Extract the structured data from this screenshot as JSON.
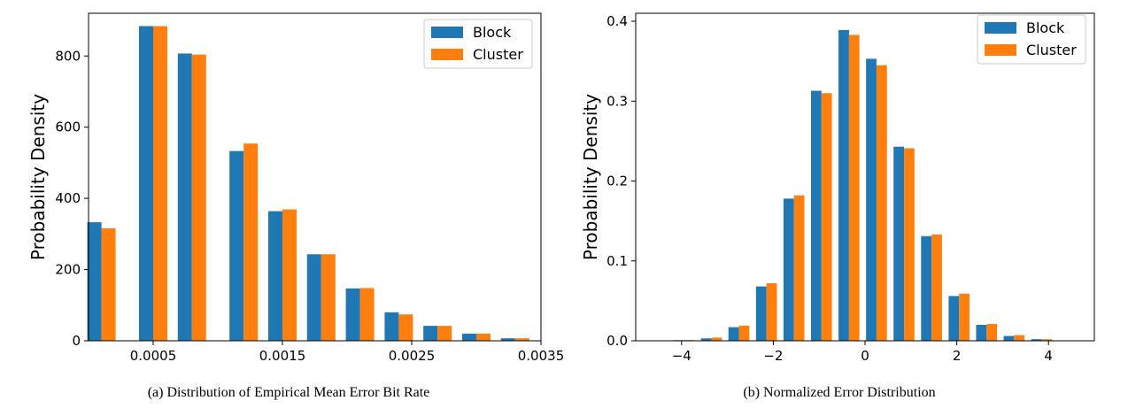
{
  "chart_data": [
    {
      "type": "bar",
      "caption": "(a) Distribution of Empirical Mean Error Bit Rate",
      "ylabel": "Probability Density",
      "xlabel": "",
      "xlim": [
        0.0,
        0.0035
      ],
      "ylim": [
        0,
        920
      ],
      "xticks": [
        0.0005,
        0.0015,
        0.0025,
        0.0035
      ],
      "xtick_labels": [
        "0.0005",
        "0.0015",
        "0.0025",
        "0.0035"
      ],
      "yticks": [
        0,
        200,
        400,
        600,
        800
      ],
      "ytick_labels": [
        "0",
        "200",
        "400",
        "600",
        "800"
      ],
      "legend": "top-right",
      "categories": [
        0.0001,
        0.0005,
        0.0008,
        0.0012,
        0.0015,
        0.0018,
        0.0021,
        0.0024,
        0.0027,
        0.003,
        0.0033
      ],
      "series": [
        {
          "name": "Block",
          "color": "#1f77b4",
          "values": [
            333,
            884,
            807,
            533,
            364,
            243,
            147,
            80,
            42,
            20,
            7
          ]
        },
        {
          "name": "Cluster",
          "color": "#ff7f0e",
          "values": [
            316,
            884,
            804,
            554,
            369,
            243,
            148,
            74,
            42,
            20,
            7
          ]
        }
      ]
    },
    {
      "type": "bar",
      "caption": "(b) Normalized Error Distribution",
      "ylabel": "Probability Density",
      "xlabel": "",
      "xlim": [
        -5.0,
        5.0
      ],
      "ylim": [
        0,
        0.41
      ],
      "xticks": [
        -4,
        -2,
        0,
        2,
        4
      ],
      "xtick_labels": [
        "−4",
        "−2",
        "0",
        "2",
        "4"
      ],
      "yticks": [
        0.0,
        0.1,
        0.2,
        0.3,
        0.4
      ],
      "ytick_labels": [
        "0.0",
        "0.1",
        "0.2",
        "0.3",
        "0.4"
      ],
      "legend": "top-right",
      "categories": [
        -4.55,
        -3.95,
        -3.35,
        -2.75,
        -2.15,
        -1.55,
        -0.95,
        -0.35,
        0.25,
        0.85,
        1.45,
        2.05,
        2.65,
        3.25,
        3.85,
        4.45
      ],
      "series": [
        {
          "name": "Block",
          "color": "#1f77b4",
          "values": [
            0.0005,
            0.0008,
            0.003,
            0.017,
            0.068,
            0.178,
            0.313,
            0.389,
            0.353,
            0.243,
            0.131,
            0.056,
            0.02,
            0.006,
            0.002,
            0.0005
          ]
        },
        {
          "name": "Cluster",
          "color": "#ff7f0e",
          "values": [
            0.0005,
            0.001,
            0.004,
            0.019,
            0.072,
            0.182,
            0.31,
            0.383,
            0.345,
            0.241,
            0.133,
            0.059,
            0.021,
            0.007,
            0.002,
            0.0005
          ]
        }
      ]
    }
  ]
}
